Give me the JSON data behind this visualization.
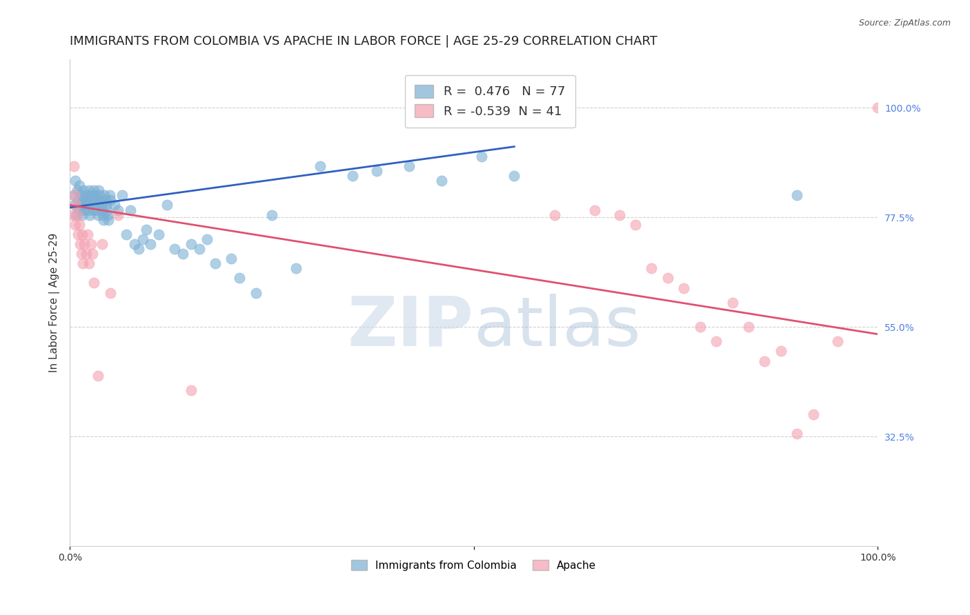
{
  "title": "IMMIGRANTS FROM COLOMBIA VS APACHE IN LABOR FORCE | AGE 25-29 CORRELATION CHART",
  "source": "Source: ZipAtlas.com",
  "ylabel": "In Labor Force | Age 25-29",
  "xlim": [
    0.0,
    1.0
  ],
  "ylim": [
    0.1,
    1.1
  ],
  "yticks": [
    0.325,
    0.55,
    0.775,
    1.0
  ],
  "ytick_labels": [
    "32.5%",
    "55.0%",
    "77.5%",
    "100.0%"
  ],
  "blue_color": "#7bafd4",
  "pink_color": "#f4a0b0",
  "blue_line_color": "#3060c0",
  "pink_line_color": "#e05070",
  "R_blue": 0.476,
  "N_blue": 77,
  "R_pink": -0.539,
  "N_pink": 41,
  "blue_scatter_x": [
    0.005,
    0.006,
    0.007,
    0.008,
    0.009,
    0.01,
    0.011,
    0.012,
    0.013,
    0.014,
    0.015,
    0.016,
    0.017,
    0.018,
    0.019,
    0.02,
    0.021,
    0.022,
    0.023,
    0.024,
    0.025,
    0.026,
    0.027,
    0.028,
    0.029,
    0.03,
    0.031,
    0.032,
    0.033,
    0.034,
    0.035,
    0.036,
    0.037,
    0.038,
    0.039,
    0.04,
    0.041,
    0.042,
    0.043,
    0.044,
    0.045,
    0.046,
    0.047,
    0.048,
    0.049,
    0.05,
    0.055,
    0.06,
    0.065,
    0.07,
    0.075,
    0.08,
    0.085,
    0.09,
    0.095,
    0.1,
    0.11,
    0.12,
    0.13,
    0.14,
    0.15,
    0.16,
    0.17,
    0.18,
    0.2,
    0.21,
    0.23,
    0.25,
    0.28,
    0.31,
    0.35,
    0.38,
    0.42,
    0.46,
    0.51,
    0.55,
    0.9
  ],
  "blue_scatter_y": [
    0.82,
    0.8,
    0.85,
    0.78,
    0.83,
    0.81,
    0.79,
    0.84,
    0.8,
    0.82,
    0.78,
    0.81,
    0.83,
    0.79,
    0.8,
    0.82,
    0.81,
    0.8,
    0.79,
    0.83,
    0.78,
    0.82,
    0.81,
    0.8,
    0.79,
    0.83,
    0.82,
    0.81,
    0.8,
    0.79,
    0.78,
    0.83,
    0.82,
    0.81,
    0.8,
    0.79,
    0.78,
    0.77,
    0.82,
    0.81,
    0.8,
    0.79,
    0.78,
    0.77,
    0.82,
    0.81,
    0.8,
    0.79,
    0.82,
    0.74,
    0.79,
    0.72,
    0.71,
    0.73,
    0.75,
    0.72,
    0.74,
    0.8,
    0.71,
    0.7,
    0.72,
    0.71,
    0.73,
    0.68,
    0.69,
    0.65,
    0.62,
    0.78,
    0.67,
    0.88,
    0.86,
    0.87,
    0.88,
    0.85,
    0.9,
    0.86,
    0.82
  ],
  "pink_scatter_x": [
    0.003,
    0.005,
    0.006,
    0.007,
    0.008,
    0.009,
    0.01,
    0.012,
    0.013,
    0.014,
    0.015,
    0.016,
    0.018,
    0.02,
    0.022,
    0.024,
    0.026,
    0.028,
    0.03,
    0.035,
    0.04,
    0.05,
    0.06,
    0.15,
    0.6,
    0.65,
    0.68,
    0.7,
    0.72,
    0.74,
    0.76,
    0.78,
    0.8,
    0.82,
    0.84,
    0.86,
    0.88,
    0.9,
    0.92,
    0.95,
    1.0
  ],
  "pink_scatter_y": [
    0.78,
    0.88,
    0.82,
    0.76,
    0.8,
    0.78,
    0.74,
    0.76,
    0.72,
    0.7,
    0.74,
    0.68,
    0.72,
    0.7,
    0.74,
    0.68,
    0.72,
    0.7,
    0.64,
    0.45,
    0.72,
    0.62,
    0.78,
    0.42,
    0.78,
    0.79,
    0.78,
    0.76,
    0.67,
    0.65,
    0.63,
    0.55,
    0.52,
    0.6,
    0.55,
    0.48,
    0.5,
    0.33,
    0.37,
    0.52,
    1.0
  ],
  "blue_trend_x": [
    0.0,
    0.55
  ],
  "blue_trend_y": [
    0.795,
    0.92
  ],
  "pink_trend_x": [
    0.0,
    1.0
  ],
  "pink_trend_y": [
    0.8,
    0.535
  ],
  "background_color": "#ffffff",
  "grid_color": "#d0d0d0",
  "tick_label_color_right": "#5080e0",
  "title_fontsize": 13,
  "axis_label_fontsize": 11,
  "tick_fontsize": 10,
  "legend_fontsize": 13
}
